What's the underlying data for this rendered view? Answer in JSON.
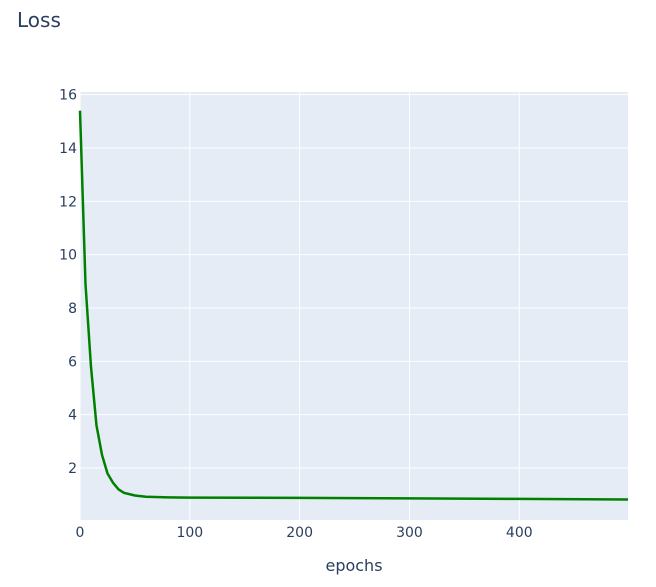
{
  "chart_data": {
    "type": "line",
    "title": "Loss",
    "x_label": "epochs",
    "x": [
      0,
      5,
      10,
      15,
      20,
      25,
      30,
      35,
      40,
      50,
      60,
      80,
      100,
      200,
      300,
      400,
      499
    ],
    "series": [
      {
        "color": "#008000",
        "values": [
          15.4,
          8.9,
          5.8,
          3.6,
          2.5,
          1.8,
          1.45,
          1.2,
          1.07,
          0.97,
          0.92,
          0.9,
          0.89,
          0.88,
          0.86,
          0.84,
          0.82
        ]
      }
    ],
    "xlim": [
      0,
      499
    ],
    "xticks": [
      0,
      100,
      200,
      300,
      400
    ],
    "ylim": [
      0.05,
      16.1
    ],
    "yticks": [
      2,
      4,
      6,
      8,
      10,
      12,
      14,
      16
    ],
    "grid": true
  }
}
